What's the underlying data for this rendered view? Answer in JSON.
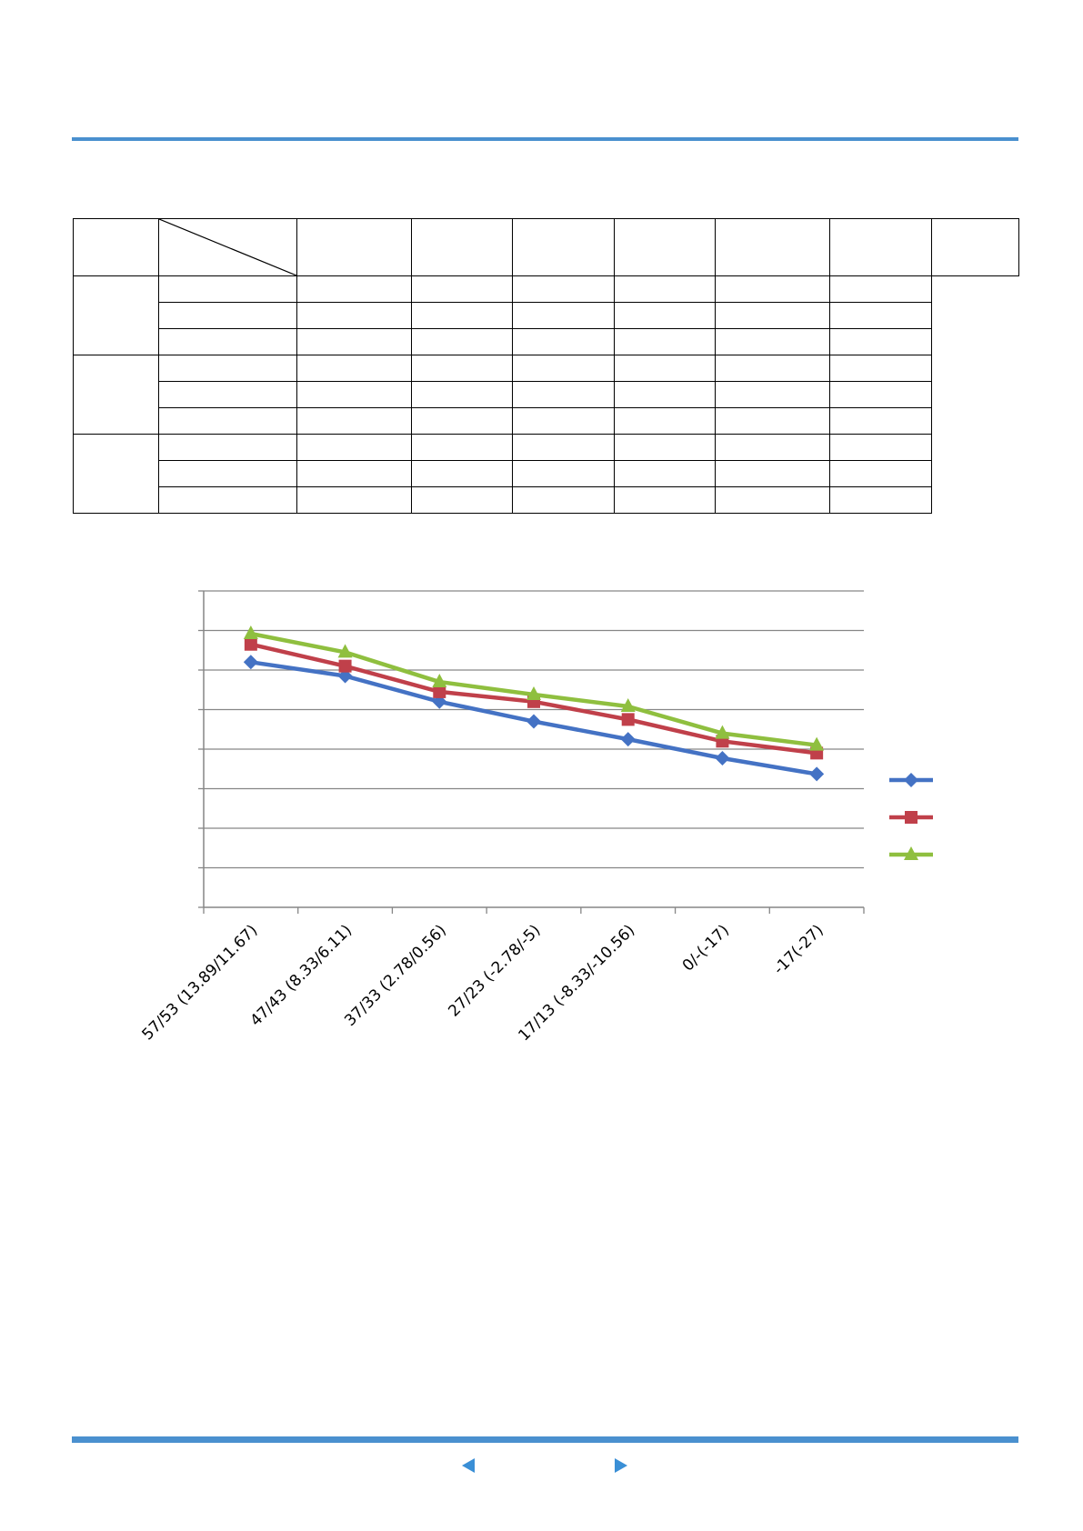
{
  "colors": {
    "accent_rule": "#4a90cf",
    "nav_arrow": "#3a8fd6",
    "series_1": "#4472c4",
    "series_2": "#c0404a",
    "series_3": "#8fbf3f",
    "gridline": "#868686"
  },
  "table": {
    "header_cells": [
      "",
      "",
      "",
      "",
      "",
      "",
      "",
      ""
    ],
    "groups": [
      {
        "label": "",
        "rows": [
          [
            "",
            "",
            "",
            "",
            "",
            "",
            ""
          ],
          [
            "",
            "",
            "",
            "",
            "",
            "",
            ""
          ],
          [
            "",
            "",
            "",
            "",
            "",
            "",
            ""
          ]
        ]
      },
      {
        "label": "",
        "rows": [
          [
            "",
            "",
            "",
            "",
            "",
            "",
            ""
          ],
          [
            "",
            "",
            "",
            "",
            "",
            "",
            ""
          ],
          [
            "",
            "",
            "",
            "",
            "",
            "",
            ""
          ]
        ]
      },
      {
        "label": "",
        "rows": [
          [
            "",
            "",
            "",
            "",
            "",
            "",
            ""
          ],
          [
            "",
            "",
            "",
            "",
            "",
            "",
            ""
          ],
          [
            "",
            "",
            "",
            "",
            "",
            "",
            ""
          ]
        ]
      }
    ]
  },
  "chart_data": {
    "type": "line",
    "categories": [
      "57/53 (13.89/11.67)",
      "47/43 (8.33/6.11)",
      "37/33 (2.78/0.56)",
      "27/23 (-2.78/-5)",
      "17/13 (-8.33/-10.56)",
      "0/-(-17)",
      "-17(-27)"
    ],
    "ylim": [
      0,
      8
    ],
    "grid": true,
    "legend": "right",
    "series": [
      {
        "color": "#4472c4",
        "marker": "diamond",
        "values": [
          6.2,
          5.85,
          5.2,
          4.7,
          4.25,
          3.77,
          3.37
        ]
      },
      {
        "color": "#c0404a",
        "marker": "square",
        "values": [
          6.65,
          6.1,
          5.45,
          5.2,
          4.75,
          4.2,
          3.9
        ]
      },
      {
        "color": "#8fbf3f",
        "marker": "triangle",
        "values": [
          6.92,
          6.45,
          5.7,
          5.38,
          5.08,
          4.4,
          4.1
        ]
      }
    ]
  },
  "navigation": {
    "prev_icon": "triangle-left-icon",
    "next_icon": "triangle-right-icon"
  }
}
